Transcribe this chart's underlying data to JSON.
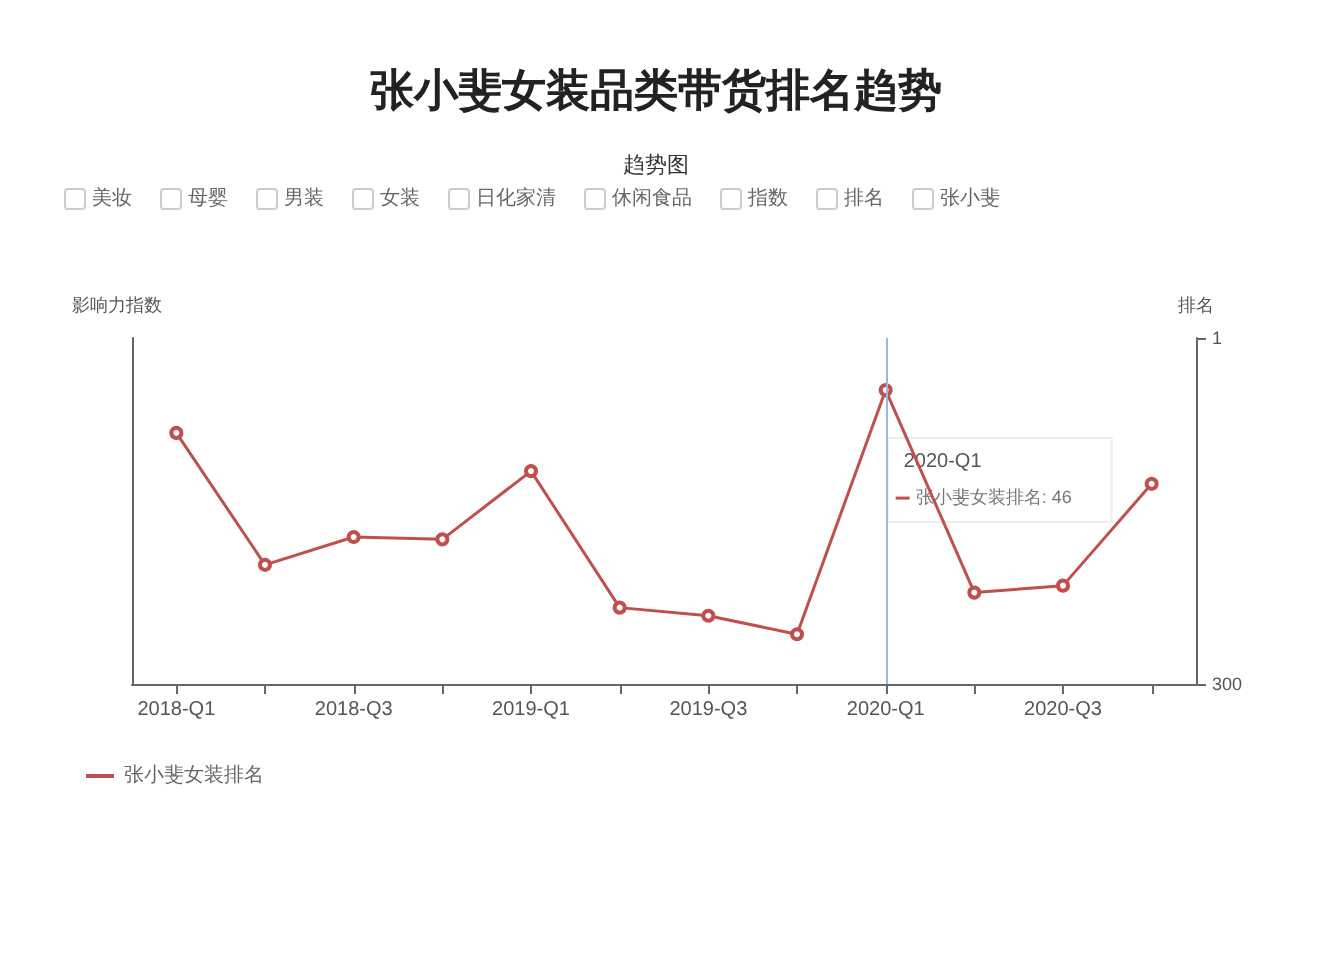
{
  "chart_data": {
    "type": "line",
    "title": "张小斐女装品类带货排名趋势",
    "subtitle": "趋势图",
    "ylabel": "影响力指数",
    "y2label": "排名",
    "categories": [
      "2018-Q1",
      null,
      "2018-Q3",
      null,
      "2019-Q1",
      null,
      "2019-Q3",
      null,
      "2020-Q1",
      null,
      "2020-Q3",
      null
    ],
    "series": [
      {
        "name": "张小斐女装排名",
        "color": "#c0504d",
        "axis": "y2",
        "values": [
          83,
          197,
          173,
          175,
          116,
          234,
          241,
          257,
          46,
          221,
          215,
          127
        ]
      }
    ],
    "y2lim": [
      300,
      1
    ],
    "y2ticks": [
      1,
      300
    ],
    "ref_lines": [
      {
        "axis": "x",
        "value": "2020-Q1",
        "label": "张小斐女装排名: 46",
        "color": "#9ab8e0"
      }
    ],
    "annotations": [
      "美妆",
      "母婴",
      "男装",
      "女装",
      "日化家清",
      "休闲食品",
      "指数",
      "排名",
      "张小斐"
    ],
    "legend": "bottom left",
    "marker": "circle",
    "line_style": "solid",
    "grid": false
  }
}
